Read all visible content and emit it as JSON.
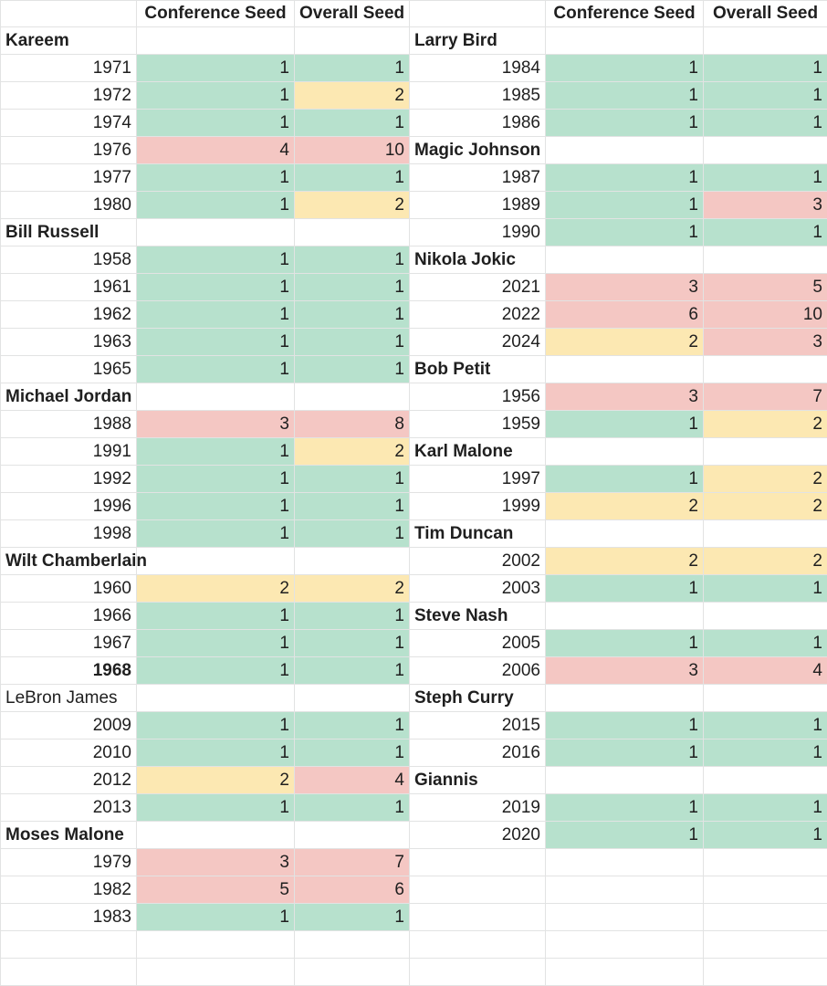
{
  "headers": [
    "Conference Seed",
    "Overall Seed"
  ],
  "colors": {
    "green": "#b7e1cd",
    "yellow": "#fce8b2",
    "red": "#f4c7c3"
  },
  "left": [
    {
      "player": "Kareem",
      "rows": [
        {
          "year": "1971",
          "conf": "1",
          "overall": "1",
          "conf_color": "green",
          "overall_color": "green"
        },
        {
          "year": "1972",
          "conf": "1",
          "overall": "2",
          "conf_color": "green",
          "overall_color": "yellow"
        },
        {
          "year": "1974",
          "conf": "1",
          "overall": "1",
          "conf_color": "green",
          "overall_color": "green"
        },
        {
          "year": "1976",
          "conf": "4",
          "overall": "10",
          "conf_color": "red",
          "overall_color": "red"
        },
        {
          "year": "1977",
          "conf": "1",
          "overall": "1",
          "conf_color": "green",
          "overall_color": "green"
        },
        {
          "year": "1980",
          "conf": "1",
          "overall": "2",
          "conf_color": "green",
          "overall_color": "yellow"
        }
      ]
    },
    {
      "player": "Bill Russell",
      "rows": [
        {
          "year": "1958",
          "conf": "1",
          "overall": "1",
          "conf_color": "green",
          "overall_color": "green"
        },
        {
          "year": "1961",
          "conf": "1",
          "overall": "1",
          "conf_color": "green",
          "overall_color": "green"
        },
        {
          "year": "1962",
          "conf": "1",
          "overall": "1",
          "conf_color": "green",
          "overall_color": "green"
        },
        {
          "year": "1963",
          "conf": "1",
          "overall": "1",
          "conf_color": "green",
          "overall_color": "green"
        },
        {
          "year": "1965",
          "conf": "1",
          "overall": "1",
          "conf_color": "green",
          "overall_color": "green"
        }
      ]
    },
    {
      "player": "Michael Jordan",
      "rows": [
        {
          "year": "1988",
          "conf": "3",
          "overall": "8",
          "conf_color": "red",
          "overall_color": "red"
        },
        {
          "year": "1991",
          "conf": "1",
          "overall": "2",
          "conf_color": "green",
          "overall_color": "yellow"
        },
        {
          "year": "1992",
          "conf": "1",
          "overall": "1",
          "conf_color": "green",
          "overall_color": "green"
        },
        {
          "year": "1996",
          "conf": "1",
          "overall": "1",
          "conf_color": "green",
          "overall_color": "green"
        },
        {
          "year": "1998",
          "conf": "1",
          "overall": "1",
          "conf_color": "green",
          "overall_color": "green"
        }
      ]
    },
    {
      "player": "Wilt  Chamberlain",
      "rows": [
        {
          "year": "1960",
          "conf": "2",
          "overall": "2",
          "conf_color": "yellow",
          "overall_color": "yellow"
        },
        {
          "year": "1966",
          "conf": "1",
          "overall": "1",
          "conf_color": "green",
          "overall_color": "green"
        },
        {
          "year": "1967",
          "conf": "1",
          "overall": "1",
          "conf_color": "green",
          "overall_color": "green"
        },
        {
          "year": "1968",
          "conf": "1",
          "overall": "1",
          "conf_color": "green",
          "overall_color": "green",
          "year_bold": true
        }
      ]
    },
    {
      "player": "LeBron James",
      "player_bold": false,
      "rows": [
        {
          "year": "2009",
          "conf": "1",
          "overall": "1",
          "conf_color": "green",
          "overall_color": "green"
        },
        {
          "year": "2010",
          "conf": "1",
          "overall": "1",
          "conf_color": "green",
          "overall_color": "green"
        },
        {
          "year": "2012",
          "conf": "2",
          "overall": "4",
          "conf_color": "yellow",
          "overall_color": "red"
        },
        {
          "year": "2013",
          "conf": "1",
          "overall": "1",
          "conf_color": "green",
          "overall_color": "green"
        }
      ]
    },
    {
      "player": "Moses Malone",
      "rows": [
        {
          "year": "1979",
          "conf": "3",
          "overall": "7",
          "conf_color": "red",
          "overall_color": "red"
        },
        {
          "year": "1982",
          "conf": "5",
          "overall": "6",
          "conf_color": "red",
          "overall_color": "red"
        },
        {
          "year": "1983",
          "conf": "1",
          "overall": "1",
          "conf_color": "green",
          "overall_color": "green"
        }
      ]
    }
  ],
  "right": [
    {
      "player": "Larry Bird",
      "rows": [
        {
          "year": "1984",
          "conf": "1",
          "overall": "1",
          "conf_color": "green",
          "overall_color": "green"
        },
        {
          "year": "1985",
          "conf": "1",
          "overall": "1",
          "conf_color": "green",
          "overall_color": "green"
        },
        {
          "year": "1986",
          "conf": "1",
          "overall": "1",
          "conf_color": "green",
          "overall_color": "green"
        }
      ]
    },
    {
      "player": "Magic Johnson",
      "rows": [
        {
          "year": "1987",
          "conf": "1",
          "overall": "1",
          "conf_color": "green",
          "overall_color": "green"
        },
        {
          "year": "1989",
          "conf": "1",
          "overall": "3",
          "conf_color": "green",
          "overall_color": "red"
        },
        {
          "year": "1990",
          "conf": "1",
          "overall": "1",
          "conf_color": "green",
          "overall_color": "green"
        }
      ]
    },
    {
      "player": "Nikola Jokic",
      "rows": [
        {
          "year": "2021",
          "conf": "3",
          "overall": "5",
          "conf_color": "red",
          "overall_color": "red"
        },
        {
          "year": "2022",
          "conf": "6",
          "overall": "10",
          "conf_color": "red",
          "overall_color": "red"
        },
        {
          "year": "2024",
          "conf": "2",
          "overall": "3",
          "conf_color": "yellow",
          "overall_color": "red"
        }
      ]
    },
    {
      "player": "Bob Petit",
      "rows": [
        {
          "year": "1956",
          "conf": "3",
          "overall": "7",
          "conf_color": "red",
          "overall_color": "red"
        },
        {
          "year": "1959",
          "conf": "1",
          "overall": "2",
          "conf_color": "green",
          "overall_color": "yellow"
        }
      ]
    },
    {
      "player": "Karl Malone",
      "rows": [
        {
          "year": "1997",
          "conf": "1",
          "overall": "2",
          "conf_color": "green",
          "overall_color": "yellow"
        },
        {
          "year": "1999",
          "conf": "2",
          "overall": "2",
          "conf_color": "yellow",
          "overall_color": "yellow"
        }
      ]
    },
    {
      "player": "Tim Duncan",
      "rows": [
        {
          "year": "2002",
          "conf": "2",
          "overall": "2",
          "conf_color": "yellow",
          "overall_color": "yellow"
        },
        {
          "year": "2003",
          "conf": "1",
          "overall": "1",
          "conf_color": "green",
          "overall_color": "green"
        }
      ]
    },
    {
      "player": "Steve Nash",
      "rows": [
        {
          "year": "2005",
          "conf": "1",
          "overall": "1",
          "conf_color": "green",
          "overall_color": "green"
        },
        {
          "year": "2006",
          "conf": "3",
          "overall": "4",
          "conf_color": "red",
          "overall_color": "red"
        }
      ]
    },
    {
      "player": "Steph Curry",
      "rows": [
        {
          "year": "2015",
          "conf": "1",
          "overall": "1",
          "conf_color": "green",
          "overall_color": "green"
        },
        {
          "year": "2016",
          "conf": "1",
          "overall": "1",
          "conf_color": "green",
          "overall_color": "green"
        }
      ]
    },
    {
      "player": "Giannis",
      "rows": [
        {
          "year": "2019",
          "conf": "1",
          "overall": "1",
          "conf_color": "green",
          "overall_color": "green"
        },
        {
          "year": "2020",
          "conf": "1",
          "overall": "1",
          "conf_color": "green",
          "overall_color": "green"
        }
      ]
    }
  ]
}
